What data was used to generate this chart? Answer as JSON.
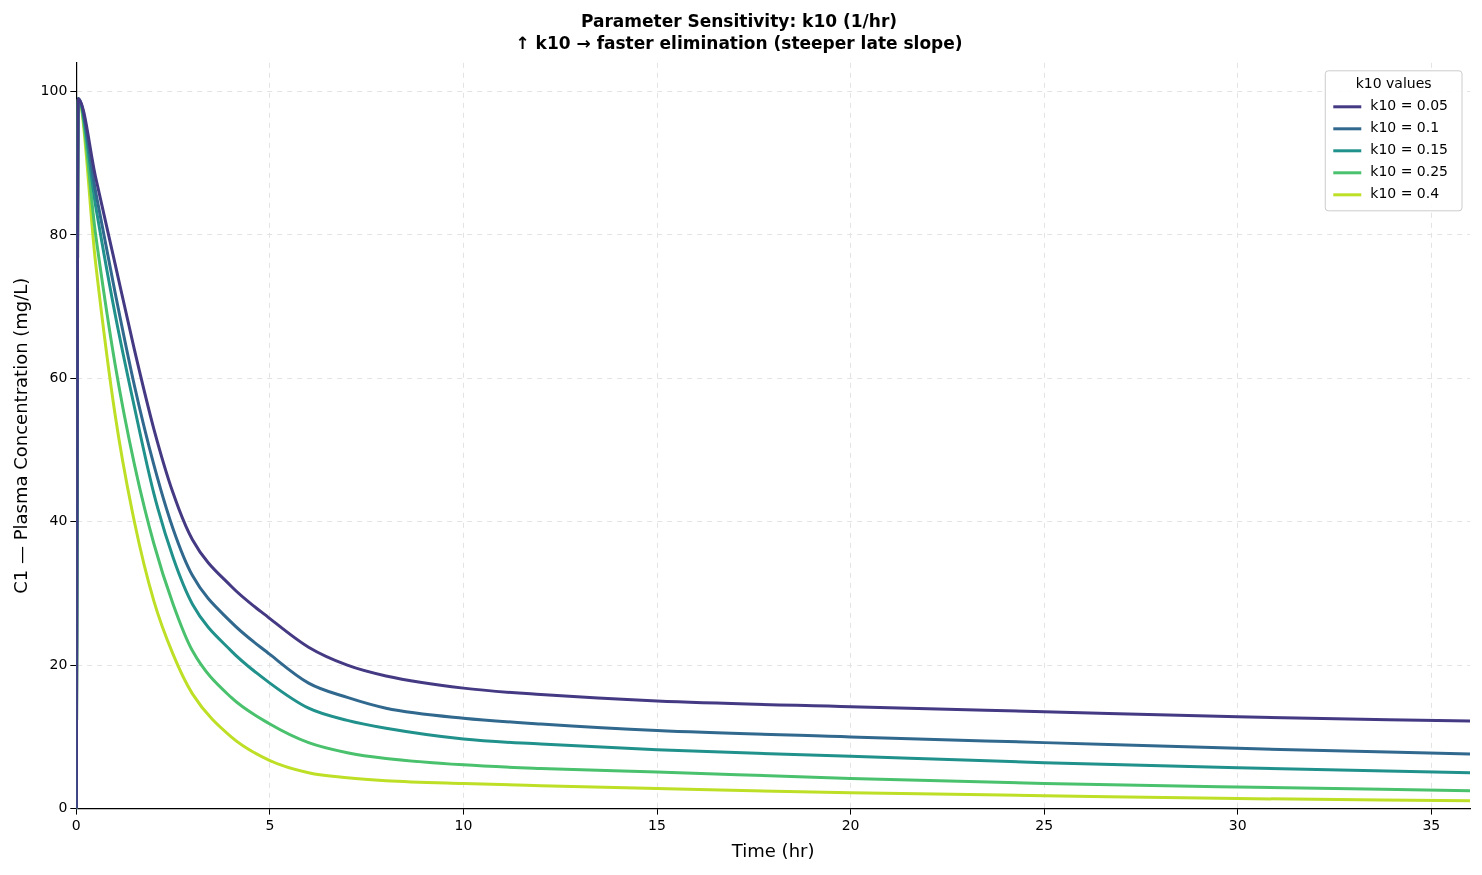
{
  "chart_data": {
    "type": "line",
    "title": "Parameter Sensitivity: k10 (1/hr)",
    "subtitle": "↑ k10 → faster elimination (steeper late slope)",
    "xlabel": "Time (hr)",
    "ylabel": "C1 — Plasma Concentration (mg/L)",
    "legend_title": "k10 values",
    "legend": "top right",
    "grid": true,
    "line_style": "solid",
    "marker": "none",
    "x": [
      0,
      0.05,
      0.5,
      1,
      1.5,
      2,
      2.5,
      3,
      4,
      5,
      6,
      7,
      8,
      10,
      12,
      15,
      20,
      25,
      30,
      36
    ],
    "xlim": [
      0,
      36
    ],
    "xticks": [
      0,
      5,
      10,
      15,
      20,
      25,
      30,
      35
    ],
    "ylim": [
      0,
      104
    ],
    "yticks": [
      0,
      20,
      40,
      60,
      80,
      100
    ],
    "series": [
      {
        "name": "k10 = 0.05",
        "color": "#443983",
        "values": [
          0,
          99,
          88,
          76,
          64,
          53,
          44,
          37.5,
          31,
          26.5,
          22.5,
          20,
          18.5,
          16.8,
          15.9,
          15,
          14.2,
          13.5,
          12.8,
          12.2
        ]
      },
      {
        "name": "k10 = 0.1",
        "color": "#31688e",
        "values": [
          0,
          99,
          86,
          72,
          59,
          48,
          39,
          32.5,
          26,
          21.5,
          17.5,
          15.5,
          14,
          12.6,
          11.8,
          10.9,
          10,
          9.2,
          8.4,
          7.6
        ]
      },
      {
        "name": "k10 = 0.15",
        "color": "#21918c",
        "values": [
          0,
          99,
          84,
          69,
          56,
          44,
          35,
          28.5,
          22,
          17.5,
          14,
          12.3,
          11.2,
          9.7,
          9,
          8.2,
          7.3,
          6.4,
          5.7,
          5.0
        ]
      },
      {
        "name": "k10 = 0.25",
        "color": "#4ac16d",
        "values": [
          0,
          99,
          80,
          62,
          48,
          37,
          28.5,
          22,
          15.5,
          11.8,
          9.2,
          7.8,
          7,
          6.1,
          5.6,
          5.1,
          4.2,
          3.5,
          3.0,
          2.5
        ]
      },
      {
        "name": "k10 = 0.4",
        "color": "#bddf26",
        "values": [
          0,
          99,
          76,
          55,
          40,
          29,
          21.5,
          16,
          10,
          6.7,
          5,
          4.3,
          3.9,
          3.5,
          3.2,
          2.8,
          2.2,
          1.8,
          1.4,
          1.1
        ]
      }
    ]
  }
}
